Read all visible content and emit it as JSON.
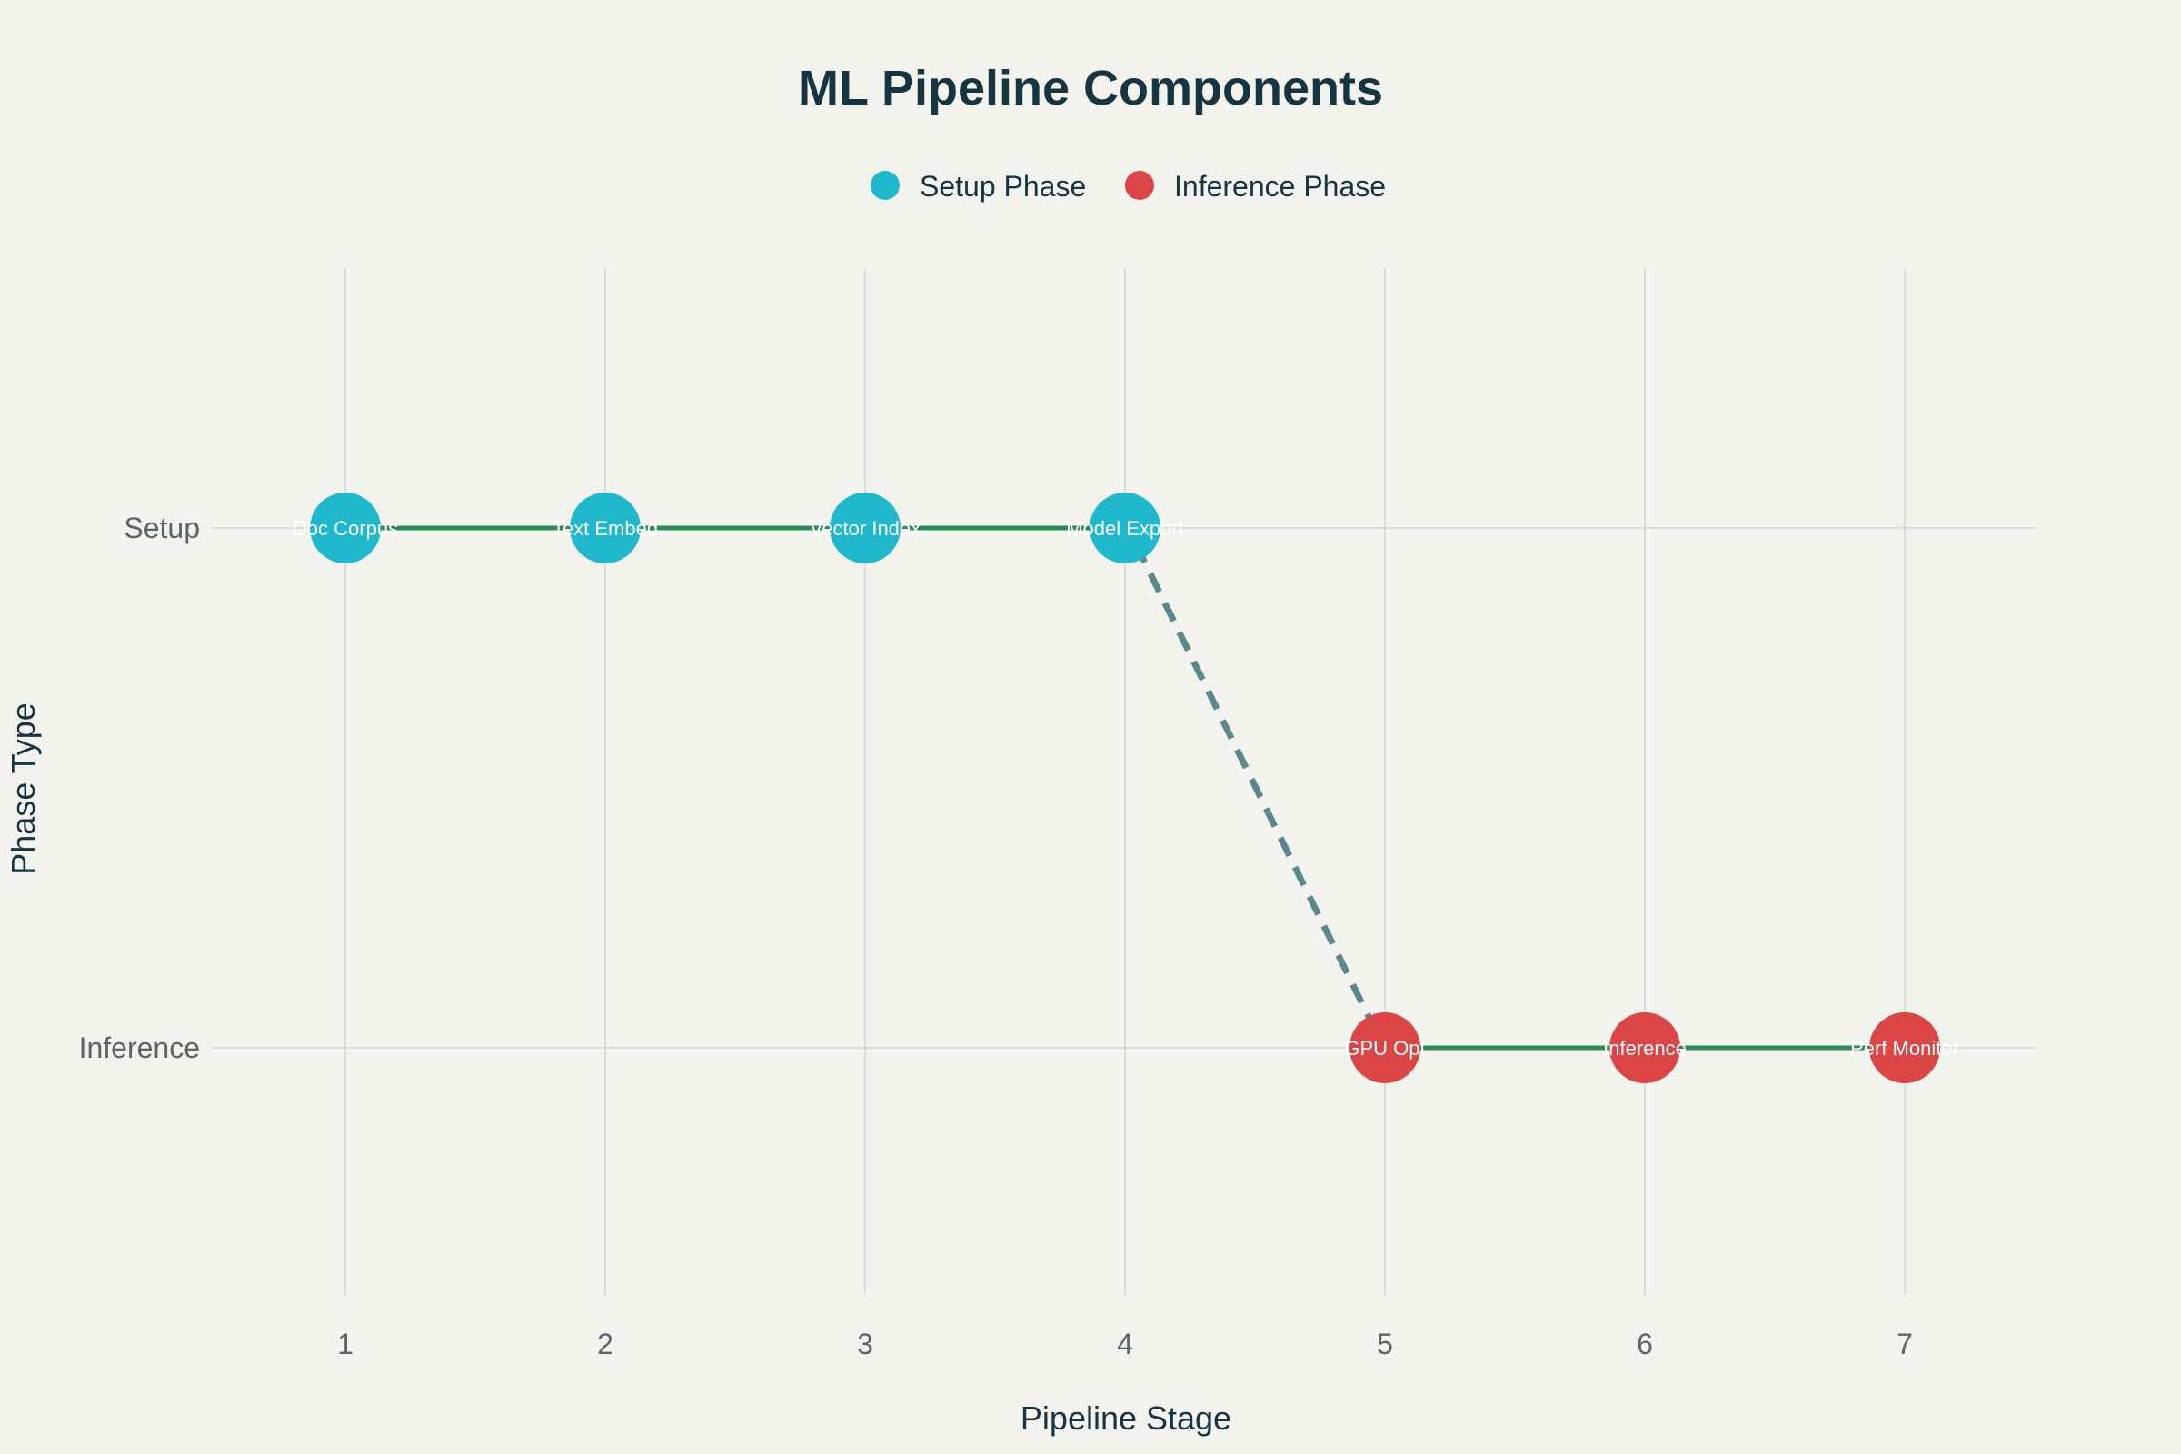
{
  "chart_data": {
    "type": "scatter",
    "title": "ML Pipeline Components",
    "xlabel": "Pipeline Stage",
    "ylabel": "Phase Type",
    "xlim": [
      0.5,
      7.5
    ],
    "x_ticks": [
      1,
      2,
      3,
      4,
      5,
      6,
      7
    ],
    "y_categories": [
      "Setup",
      "Inference"
    ],
    "grid": true,
    "legend_position": "top-center",
    "colors": {
      "setup": "#1fb8cd",
      "inference": "#db4545",
      "connector": "#2e8b57",
      "transition": "#5d878f",
      "background": "#f3f3ee",
      "grid": "#d3d3cf"
    },
    "series": [
      {
        "name": "Setup Phase",
        "color": "#1fb8cd",
        "points": [
          {
            "x": 1,
            "y": "Setup",
            "label": "Doc Corpus"
          },
          {
            "x": 2,
            "y": "Setup",
            "label": "Text Embed"
          },
          {
            "x": 3,
            "y": "Setup",
            "label": "Vector Index"
          },
          {
            "x": 4,
            "y": "Setup",
            "label": "Model Export"
          }
        ]
      },
      {
        "name": "Inference Phase",
        "color": "#db4545",
        "points": [
          {
            "x": 5,
            "y": "Inference",
            "label": "GPU Opt"
          },
          {
            "x": 6,
            "y": "Inference",
            "label": "Inference"
          },
          {
            "x": 7,
            "y": "Inference",
            "label": "Perf Monitor"
          }
        ]
      }
    ],
    "transition": {
      "from": {
        "x": 4,
        "y": "Setup"
      },
      "to": {
        "x": 5,
        "y": "Inference"
      },
      "style": "dashed"
    }
  }
}
